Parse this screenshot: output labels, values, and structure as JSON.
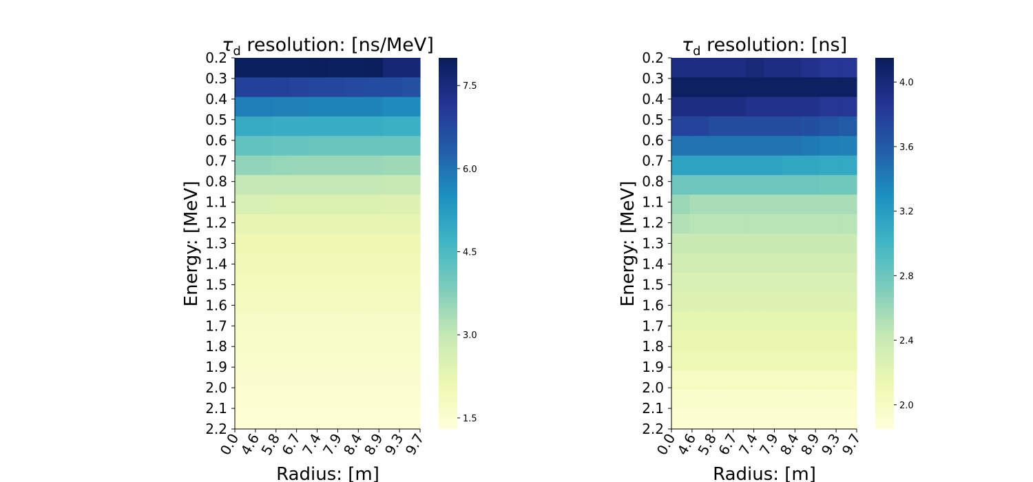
{
  "chart_data": [
    {
      "type": "heatmap",
      "title_symbol": "τ",
      "title_subscript": "d",
      "title_text": " resolution: [ns/MeV]",
      "xlabel": "Radius: [m]",
      "ylabel": "Energy: [MeV]",
      "x_tick_labels": [
        "0.0",
        "4.6",
        "5.8",
        "6.7",
        "7.4",
        "7.9",
        "8.4",
        "8.9",
        "9.3",
        "9.7"
      ],
      "y_tick_labels": [
        "0.2",
        "0.3",
        "0.4",
        "0.5",
        "0.6",
        "0.7",
        "0.8",
        "1.1",
        "1.2",
        "1.3",
        "1.4",
        "1.5",
        "1.6",
        "1.7",
        "1.8",
        "1.9",
        "2.0",
        "2.1",
        "2.2"
      ],
      "colormap": "YlGnBu",
      "vmin": 1.3,
      "vmax": 8.0,
      "colorbar_ticks": [
        "1.5",
        "3.0",
        "4.5",
        "6.0",
        "7.5"
      ],
      "values": [
        [
          7.9,
          7.9,
          7.9,
          7.9,
          7.95,
          7.9,
          7.9,
          7.95,
          7.6,
          7.6
        ],
        [
          6.9,
          6.9,
          6.9,
          6.85,
          6.8,
          6.8,
          6.75,
          6.7,
          6.7,
          6.6
        ],
        [
          5.8,
          5.8,
          5.75,
          5.75,
          5.7,
          5.7,
          5.7,
          5.7,
          5.6,
          5.6
        ],
        [
          4.9,
          4.9,
          4.85,
          4.85,
          4.85,
          4.85,
          4.85,
          4.85,
          4.8,
          4.8
        ],
        [
          4.2,
          4.2,
          4.15,
          4.15,
          4.1,
          4.1,
          4.1,
          4.1,
          4.1,
          4.1
        ],
        [
          3.6,
          3.6,
          3.55,
          3.5,
          3.5,
          3.5,
          3.5,
          3.5,
          3.45,
          3.45
        ],
        [
          3.0,
          3.0,
          3.0,
          3.0,
          3.0,
          3.0,
          3.0,
          3.0,
          2.95,
          2.95
        ],
        [
          2.6,
          2.6,
          2.55,
          2.55,
          2.55,
          2.55,
          2.55,
          2.55,
          2.5,
          2.5
        ],
        [
          2.3,
          2.3,
          2.3,
          2.3,
          2.3,
          2.3,
          2.3,
          2.3,
          2.3,
          2.3
        ],
        [
          2.1,
          2.1,
          2.1,
          2.1,
          2.1,
          2.1,
          2.1,
          2.1,
          2.1,
          2.1
        ],
        [
          2.0,
          2.0,
          2.0,
          2.0,
          2.0,
          2.0,
          2.0,
          2.0,
          2.0,
          2.0
        ],
        [
          1.9,
          1.9,
          1.9,
          1.9,
          1.9,
          1.9,
          1.9,
          1.9,
          1.9,
          1.9
        ],
        [
          1.8,
          1.8,
          1.8,
          1.8,
          1.8,
          1.8,
          1.8,
          1.8,
          1.8,
          1.8
        ],
        [
          1.7,
          1.7,
          1.7,
          1.7,
          1.7,
          1.7,
          1.7,
          1.7,
          1.7,
          1.7
        ],
        [
          1.65,
          1.65,
          1.65,
          1.65,
          1.65,
          1.65,
          1.65,
          1.65,
          1.65,
          1.65
        ],
        [
          1.6,
          1.6,
          1.6,
          1.6,
          1.6,
          1.6,
          1.6,
          1.6,
          1.6,
          1.6
        ],
        [
          1.5,
          1.5,
          1.5,
          1.5,
          1.5,
          1.5,
          1.5,
          1.5,
          1.5,
          1.5
        ],
        [
          1.45,
          1.45,
          1.45,
          1.45,
          1.45,
          1.45,
          1.45,
          1.45,
          1.45,
          1.45
        ],
        [
          1.4,
          1.4,
          1.4,
          1.4,
          1.4,
          1.4,
          1.4,
          1.4,
          1.4,
          1.4
        ]
      ]
    },
    {
      "type": "heatmap",
      "title_symbol": "τ",
      "title_subscript": "d",
      "title_text": " resolution: [ns]",
      "xlabel": "Radius: [m]",
      "ylabel": "Energy: [MeV]",
      "x_tick_labels": [
        "0.0",
        "4.6",
        "5.8",
        "6.7",
        "7.4",
        "7.9",
        "8.4",
        "8.9",
        "9.3",
        "9.7"
      ],
      "y_tick_labels": [
        "0.2",
        "0.3",
        "0.4",
        "0.5",
        "0.6",
        "0.7",
        "0.8",
        "1.1",
        "1.2",
        "1.3",
        "1.4",
        "1.5",
        "1.6",
        "1.7",
        "1.8",
        "1.9",
        "2.0",
        "2.1",
        "2.2"
      ],
      "colormap": "YlGnBu",
      "vmin": 1.85,
      "vmax": 4.15,
      "colorbar_ticks": [
        "2.0",
        "2.4",
        "2.8",
        "3.2",
        "3.6",
        "4.0"
      ],
      "values": [
        [
          3.95,
          3.95,
          3.95,
          3.95,
          4.0,
          3.95,
          3.95,
          3.9,
          3.85,
          3.85
        ],
        [
          4.1,
          4.1,
          4.1,
          4.1,
          4.1,
          4.1,
          4.1,
          4.1,
          4.1,
          4.1
        ],
        [
          3.95,
          3.95,
          3.95,
          3.95,
          3.9,
          3.9,
          3.9,
          3.9,
          3.85,
          3.85
        ],
        [
          3.75,
          3.75,
          3.7,
          3.7,
          3.7,
          3.7,
          3.7,
          3.68,
          3.65,
          3.6
        ],
        [
          3.45,
          3.45,
          3.45,
          3.45,
          3.45,
          3.45,
          3.45,
          3.42,
          3.4,
          3.38
        ],
        [
          3.15,
          3.15,
          3.15,
          3.15,
          3.15,
          3.15,
          3.12,
          3.12,
          3.1,
          3.1
        ],
        [
          2.8,
          2.8,
          2.8,
          2.8,
          2.8,
          2.8,
          2.8,
          2.8,
          2.78,
          2.78
        ],
        [
          2.6,
          2.55,
          2.55,
          2.55,
          2.55,
          2.55,
          2.55,
          2.55,
          2.55,
          2.55
        ],
        [
          2.5,
          2.48,
          2.48,
          2.48,
          2.48,
          2.48,
          2.48,
          2.48,
          2.48,
          2.48
        ],
        [
          2.4,
          2.4,
          2.4,
          2.4,
          2.4,
          2.4,
          2.4,
          2.4,
          2.4,
          2.4
        ],
        [
          2.35,
          2.35,
          2.35,
          2.35,
          2.35,
          2.35,
          2.35,
          2.35,
          2.35,
          2.35
        ],
        [
          2.3,
          2.3,
          2.3,
          2.3,
          2.3,
          2.3,
          2.3,
          2.3,
          2.3,
          2.3
        ],
        [
          2.25,
          2.25,
          2.25,
          2.25,
          2.25,
          2.25,
          2.25,
          2.25,
          2.25,
          2.25
        ],
        [
          2.2,
          2.2,
          2.2,
          2.2,
          2.2,
          2.2,
          2.2,
          2.2,
          2.2,
          2.2
        ],
        [
          2.15,
          2.15,
          2.15,
          2.15,
          2.15,
          2.15,
          2.15,
          2.15,
          2.15,
          2.15
        ],
        [
          2.1,
          2.1,
          2.1,
          2.1,
          2.1,
          2.1,
          2.1,
          2.1,
          2.1,
          2.1
        ],
        [
          2.0,
          2.0,
          2.0,
          2.0,
          2.0,
          2.0,
          2.0,
          2.0,
          2.0,
          2.0
        ],
        [
          1.95,
          1.95,
          1.95,
          1.95,
          1.95,
          1.95,
          1.95,
          1.95,
          1.95,
          1.95
        ],
        [
          1.9,
          1.9,
          1.9,
          1.9,
          1.9,
          1.9,
          1.9,
          1.9,
          1.9,
          1.9
        ]
      ]
    }
  ]
}
